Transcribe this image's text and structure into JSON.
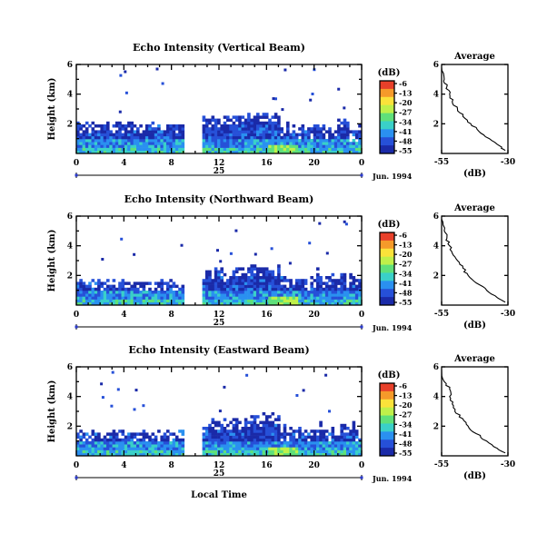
{
  "chart_data": {
    "type": "heatmap",
    "panels": [
      {
        "title": "Echo Intensity (Vertical Beam)",
        "avg_profile_x": [
          -31,
          -33,
          -37,
          -41,
          -44,
          -47,
          -49,
          -51,
          -52,
          -53,
          -54,
          -55
        ],
        "avg_profile_y": [
          0.2,
          0.5,
          1,
          1.5,
          2,
          2.5,
          3,
          3.5,
          4,
          4.5,
          5,
          5.8
        ]
      },
      {
        "title": "Echo Intensity (Northward Beam)",
        "avg_profile_x": [
          -31,
          -34,
          -38,
          -42,
          -45,
          -47,
          -49,
          -51,
          -52,
          -53,
          -54,
          -55
        ],
        "avg_profile_y": [
          0.2,
          0.5,
          1,
          1.5,
          2,
          2.5,
          3,
          3.5,
          4,
          4.5,
          5,
          5.8
        ]
      },
      {
        "title": "Echo Intensity (Eastward Beam)",
        "avg_profile_x": [
          -31,
          -34,
          -38,
          -42,
          -45,
          -47,
          -50,
          -51,
          -52,
          -52,
          -54,
          -55
        ],
        "avg_profile_y": [
          0.2,
          0.5,
          1,
          1.5,
          2,
          2.5,
          3,
          3.5,
          4,
          4.5,
          5,
          5.8
        ]
      }
    ],
    "ylabel": "Height (km)",
    "xlabel": "Local Time",
    "y_ticks": [
      "2",
      "4",
      "6"
    ],
    "ylim": [
      0,
      6
    ],
    "x_ticks": [
      "0",
      "4",
      "8",
      "12",
      "16",
      "20",
      "0"
    ],
    "xlim": [
      0,
      24
    ],
    "date_label_day": "25",
    "date_label": "Jun. 1994",
    "colorbar": {
      "unit": "(dB)",
      "ticks": [
        "-6",
        "-13",
        "-20",
        "-27",
        "-34",
        "-41",
        "-48",
        "-55"
      ],
      "colors": [
        "#e8402a",
        "#f59a2a",
        "#fbe23a",
        "#bff04a",
        "#5fe07a",
        "#3ad0c8",
        "#2a90f0",
        "#2650d8",
        "#1a2aa8"
      ]
    },
    "average": {
      "title": "Average",
      "xlabel": "(dB)",
      "x_ticks": [
        "-55",
        "-30"
      ],
      "xlim": [
        -55,
        -30
      ],
      "y_ticks": [
        "2",
        "4",
        "6"
      ]
    },
    "data_gap_hours": [
      9,
      10.5
    ]
  }
}
